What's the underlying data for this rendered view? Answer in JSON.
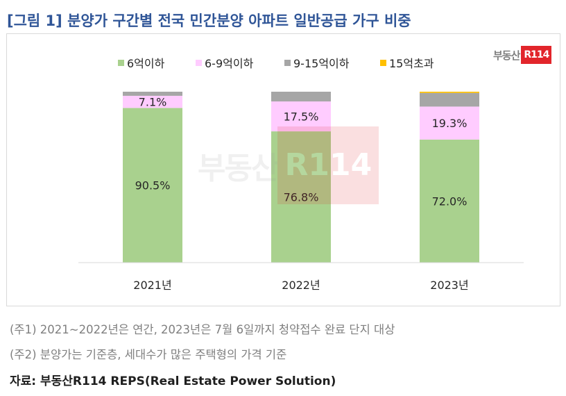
{
  "title": "[그림 1] 분양가 구간별 전국 민간분양 아파트 일반공급 가구 비중",
  "logo": {
    "text": "부동산",
    "badge": "R114"
  },
  "watermark": {
    "text": "부동산",
    "badge": "R114"
  },
  "chart_data": {
    "type": "bar",
    "stacked": true,
    "categories": [
      "2021년",
      "2022년",
      "2023년"
    ],
    "series": [
      {
        "name": "6억이하",
        "color": "#a9d18e",
        "values": [
          90.5,
          76.8,
          72.0
        ],
        "labels": [
          "90.5%",
          "76.8%",
          "72.0%"
        ]
      },
      {
        "name": "6-9억이하",
        "color": "#ffccff",
        "values": [
          7.1,
          17.5,
          19.3
        ],
        "labels": [
          "7.1%",
          "17.5%",
          "19.3%"
        ]
      },
      {
        "name": "9-15억이하",
        "color": "#a6a6a6",
        "values": [
          2.4,
          5.7,
          8.0
        ]
      },
      {
        "name": "15억초과",
        "color": "#ffc000",
        "values": [
          0.0,
          0.0,
          0.7
        ]
      }
    ],
    "ylim": [
      0,
      100
    ],
    "grid": false,
    "legend_position": "top"
  },
  "notes": [
    "(주1) 2021~2022년은 연간, 2023년은 7월 6일까지 청약접수 완료 단지 대상",
    "(주2) 분양가는 기준층, 세대수가 많은 주택형의 가격 기준"
  ],
  "source": "자료: 부동산R114 REPS(Real Estate Power Solution)"
}
